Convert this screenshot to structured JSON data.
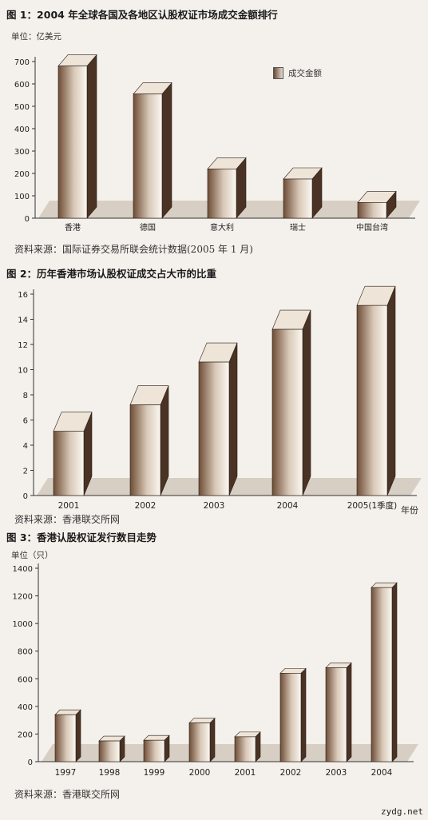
{
  "charts": [
    {
      "title": "图 1：2004 年全球各国及各地区认股权证市场成交金额排行",
      "unit": "单位：亿美元",
      "legend": "成交金额",
      "source": "资料来源：国际证券交易所联会统计数据(2005 年 1 月)"
    },
    {
      "title": "图 2：历年香港市场认股权证成交占大市的比重",
      "xunit": "年份",
      "source": "资料来源：香港联交所网"
    },
    {
      "title": "图 3：香港认股权证发行数目走势",
      "unit": "单位（只）",
      "source": "资料来源：香港联交所网"
    }
  ],
  "chart_data": [
    {
      "type": "bar",
      "title": "图 1：2004 年全球各国及各地区认股权证市场成交金额排行",
      "ylabel": "单位：亿美元",
      "categories": [
        "香港",
        "德国",
        "意大利",
        "瑞士",
        "中国台湾"
      ],
      "series": [
        {
          "name": "成交金额",
          "values": [
            680,
            555,
            220,
            175,
            70
          ]
        }
      ],
      "ylim": [
        0,
        700
      ],
      "yticks": [
        0,
        100,
        200,
        300,
        400,
        500,
        600,
        700
      ],
      "legend_position": "top-right",
      "grid": false
    },
    {
      "type": "bar",
      "title": "图 2：历年香港市场认股权证成交占大市的比重",
      "xlabel": "年份",
      "categories": [
        "2001",
        "2002",
        "2003",
        "2004",
        "2005(1季度)"
      ],
      "values": [
        5.1,
        7.2,
        10.6,
        13.2,
        15.1
      ],
      "ylim": [
        0,
        16
      ],
      "yticks": [
        0,
        2,
        4,
        6,
        8,
        10,
        12,
        14,
        16
      ],
      "grid": false
    },
    {
      "type": "bar",
      "title": "图 3：香港认股权证发行数目走势",
      "ylabel": "单位（只）",
      "categories": [
        "1997",
        "1998",
        "1999",
        "2000",
        "2001",
        "2002",
        "2003",
        "2004"
      ],
      "values": [
        340,
        150,
        155,
        280,
        180,
        640,
        680,
        1260
      ],
      "ylim": [
        0,
        1400
      ],
      "yticks": [
        0,
        200,
        400,
        600,
        800,
        1000,
        1200,
        1400
      ],
      "grid": false
    }
  ],
  "watermark": "zydg.net"
}
